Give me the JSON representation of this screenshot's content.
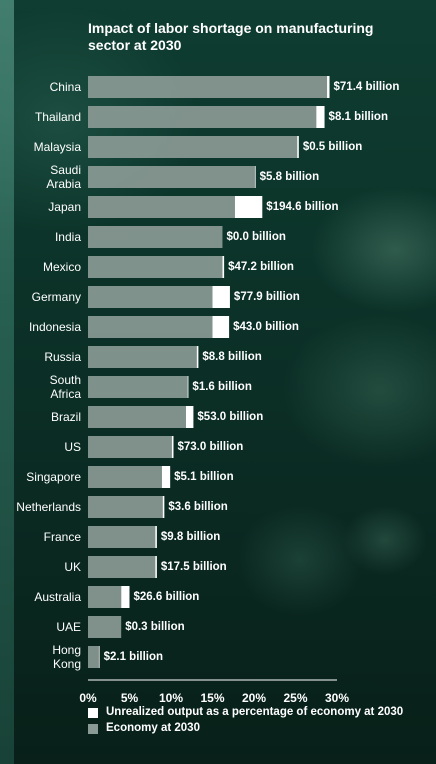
{
  "chart_data": {
    "type": "bar",
    "title": "Impact of labor shortage on manufacturing sector at 2030",
    "categories": [
      [
        "China"
      ],
      [
        "Thailand"
      ],
      [
        "Malaysia"
      ],
      [
        "Saudi",
        "Arabia"
      ],
      [
        "Japan"
      ],
      [
        "India"
      ],
      [
        "Mexico"
      ],
      [
        "Germany"
      ],
      [
        "Indonesia"
      ],
      [
        "Russia"
      ],
      [
        "South",
        "Africa"
      ],
      [
        "Brazil"
      ],
      [
        "US"
      ],
      [
        "Singapore"
      ],
      [
        "Netherlands"
      ],
      [
        "France"
      ],
      [
        "UK"
      ],
      [
        "Australia"
      ],
      [
        "UAE"
      ],
      [
        "Hong",
        "Kong"
      ]
    ],
    "series": [
      {
        "name": "Economy at 2030",
        "values": [
          28.8,
          27.5,
          25.2,
          20.1,
          17.7,
          16.2,
          16.2,
          15.0,
          15.0,
          13.1,
          12.0,
          11.8,
          10.1,
          8.9,
          9.0,
          8.1,
          8.1,
          4.0,
          4.0,
          1.3
        ]
      },
      {
        "name": "Unrealized output as a percentage of economy at 2030",
        "values": [
          0.3,
          1.0,
          0.2,
          0.1,
          3.3,
          0.0,
          0.2,
          2.1,
          2.0,
          0.2,
          0.1,
          0.9,
          0.2,
          1.0,
          0.2,
          0.2,
          0.2,
          1.0,
          0.0,
          0.1
        ]
      }
    ],
    "data_labels": [
      "$71.4 billion",
      "$8.1 billion",
      "$0.5 billion",
      "$5.8 billion",
      "$194.6 billion",
      "$0.0 billion",
      "$47.2 billion",
      "$77.9 billion",
      "$43.0 billion",
      "$8.8 billion",
      "$1.6 billion",
      "$53.0 billion",
      "$73.0 billion",
      "$5.1 billion",
      "$3.6 billion",
      "$9.8 billion",
      "$17.5 billion",
      "$26.6 billion",
      "$0.3 billion",
      "$2.1 billion"
    ],
    "x_ticks": [
      "0%",
      "5%",
      "10%",
      "15%",
      "20%",
      "25%",
      "30%"
    ],
    "xlim": [
      0,
      30
    ],
    "legend_position": "bottom",
    "colors": {
      "economy": "#8a9a94",
      "unrealized": "#ffffff",
      "text": "#ffffff"
    }
  },
  "legend": {
    "unrealized_label": "Unrealized output as a percentage of economy at 2030",
    "economy_label": "Economy at 2030"
  }
}
